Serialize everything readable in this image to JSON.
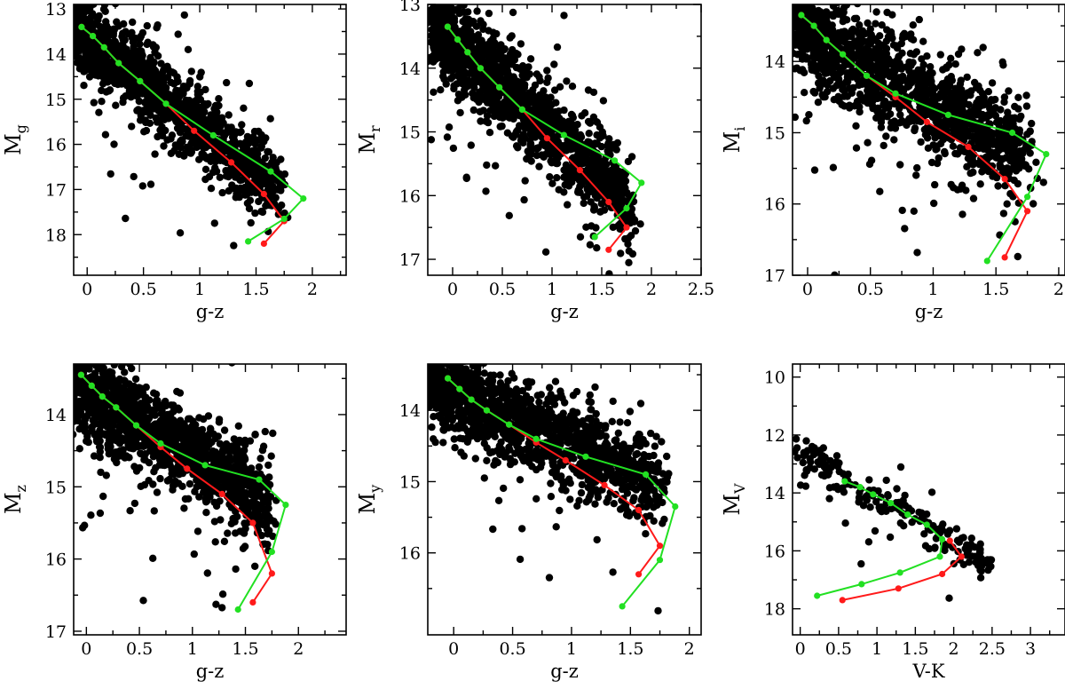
{
  "colors": {
    "scatter": "#000000",
    "red_track": "#ff1a1a",
    "green_track": "#22e022"
  },
  "chart_data": [
    {
      "type": "scatter",
      "panel": "Mg",
      "xlabel": "g-z",
      "ylabel": {
        "main": "M",
        "sub": "g"
      },
      "xlim": [
        -0.12,
        2.3
      ],
      "ylim": [
        18.9,
        12.9
      ],
      "xticks": [
        "0",
        "0.5",
        "1",
        "1.5",
        "2"
      ],
      "xtick_values": [
        0,
        0.5,
        1,
        1.5,
        2
      ],
      "yticks": [
        "13",
        "14",
        "15",
        "16",
        "17",
        "18"
      ],
      "ytick_values": [
        13,
        14,
        15,
        16,
        17,
        18
      ],
      "scatter": {
        "count": 1400,
        "x_range": [
          -0.12,
          1.7
        ],
        "y_at_x0": 13.6,
        "slope": 2.0,
        "spread": 0.42
      },
      "series": [
        {
          "name": "red",
          "x": [
            -0.05,
            0.05,
            0.15,
            0.28,
            0.47,
            0.7,
            0.95,
            1.28,
            1.57,
            1.75,
            1.57
          ],
          "y": [
            13.4,
            13.6,
            13.85,
            14.2,
            14.6,
            15.1,
            15.7,
            16.4,
            17.1,
            17.7,
            18.2
          ]
        },
        {
          "name": "green",
          "x": [
            -0.05,
            0.05,
            0.15,
            0.28,
            0.47,
            0.7,
            1.12,
            1.63,
            1.92,
            1.75,
            1.43
          ],
          "y": [
            13.4,
            13.6,
            13.85,
            14.2,
            14.6,
            15.1,
            15.8,
            16.6,
            17.2,
            17.65,
            18.15
          ]
        }
      ]
    },
    {
      "type": "scatter",
      "panel": "Mr",
      "xlabel": "g-z",
      "ylabel": {
        "main": "M",
        "sub": "r"
      },
      "xlim": [
        -0.25,
        2.5
      ],
      "ylim": [
        17.25,
        13.0
      ],
      "xticks": [
        "0",
        "0.5",
        "1",
        "1.5",
        "2",
        "2.5"
      ],
      "xtick_values": [
        0,
        0.5,
        1,
        1.5,
        2,
        2.5
      ],
      "yticks": [
        "13",
        "14",
        "15",
        "16",
        "17"
      ],
      "ytick_values": [
        13,
        14,
        15,
        16,
        17
      ],
      "scatter": {
        "count": 1500,
        "x_range": [
          -0.2,
          1.8
        ],
        "y_at_x0": 13.6,
        "slope": 1.4,
        "spread": 0.33
      },
      "series": [
        {
          "name": "red",
          "x": [
            -0.05,
            0.05,
            0.15,
            0.28,
            0.47,
            0.7,
            0.95,
            1.28,
            1.57,
            1.75,
            1.57
          ],
          "y": [
            13.35,
            13.55,
            13.75,
            14.0,
            14.3,
            14.65,
            15.1,
            15.6,
            16.1,
            16.5,
            16.85
          ]
        },
        {
          "name": "green",
          "x": [
            -0.05,
            0.05,
            0.15,
            0.28,
            0.47,
            0.7,
            1.12,
            1.63,
            1.9,
            1.75,
            1.43
          ],
          "y": [
            13.35,
            13.55,
            13.75,
            14.0,
            14.3,
            14.65,
            15.05,
            15.45,
            15.8,
            16.2,
            16.65
          ]
        }
      ]
    },
    {
      "type": "scatter",
      "panel": "Mi",
      "xlabel": "g-z",
      "ylabel": {
        "main": "M",
        "sub": "i"
      },
      "xlim": [
        -0.12,
        2.05
      ],
      "ylim": [
        17.0,
        13.2
      ],
      "xticks": [
        "0",
        "0.5",
        "1",
        "1.5",
        "2"
      ],
      "xtick_values": [
        0,
        0.5,
        1,
        1.5,
        2
      ],
      "yticks": [
        "14",
        "15",
        "16",
        "17"
      ],
      "ytick_values": [
        14,
        15,
        16,
        17
      ],
      "scatter": {
        "count": 1500,
        "x_range": [
          -0.12,
          1.75
        ],
        "y_at_x0": 13.6,
        "slope": 1.0,
        "spread": 0.33
      },
      "series": [
        {
          "name": "red",
          "x": [
            -0.05,
            0.05,
            0.15,
            0.28,
            0.47,
            0.7,
            0.95,
            1.28,
            1.57,
            1.75,
            1.57
          ],
          "y": [
            13.35,
            13.5,
            13.7,
            13.9,
            14.2,
            14.5,
            14.85,
            15.2,
            15.65,
            16.1,
            16.75
          ]
        },
        {
          "name": "green",
          "x": [
            -0.05,
            0.05,
            0.15,
            0.28,
            0.47,
            0.7,
            1.12,
            1.63,
            1.9,
            1.75,
            1.43
          ],
          "y": [
            13.35,
            13.5,
            13.7,
            13.9,
            14.2,
            14.45,
            14.75,
            15.0,
            15.3,
            15.9,
            16.8
          ]
        }
      ]
    },
    {
      "type": "scatter",
      "panel": "Mz",
      "xlabel": "g-z",
      "ylabel": {
        "main": "M",
        "sub": "z"
      },
      "xlim": [
        -0.12,
        2.45
      ],
      "ylim": [
        17.05,
        13.3
      ],
      "xticks": [
        "0",
        "0.5",
        "1",
        "1.5",
        "2"
      ],
      "xtick_values": [
        0,
        0.5,
        1,
        1.5,
        2
      ],
      "yticks": [
        "14",
        "15",
        "16",
        "17"
      ],
      "ytick_values": [
        14,
        15,
        16,
        17
      ],
      "scatter": {
        "count": 1500,
        "x_range": [
          -0.12,
          1.75
        ],
        "y_at_x0": 13.7,
        "slope": 0.85,
        "spread": 0.3
      },
      "series": [
        {
          "name": "red",
          "x": [
            -0.05,
            0.05,
            0.15,
            0.28,
            0.47,
            0.7,
            0.95,
            1.28,
            1.57,
            1.75,
            1.57
          ],
          "y": [
            13.45,
            13.6,
            13.75,
            13.9,
            14.15,
            14.45,
            14.75,
            15.1,
            15.5,
            16.2,
            16.6
          ]
        },
        {
          "name": "green",
          "x": [
            -0.05,
            0.05,
            0.15,
            0.28,
            0.47,
            0.7,
            1.12,
            1.63,
            1.88,
            1.75,
            1.43
          ],
          "y": [
            13.45,
            13.6,
            13.75,
            13.9,
            14.15,
            14.4,
            14.7,
            14.9,
            15.25,
            15.9,
            16.7
          ]
        }
      ]
    },
    {
      "type": "scatter",
      "panel": "My",
      "xlabel": "g-z",
      "ylabel": {
        "main": "M",
        "sub": "y"
      },
      "xlim": [
        -0.22,
        2.1
      ],
      "ylim": [
        17.15,
        13.35
      ],
      "xticks": [
        "0",
        "0.5",
        "1",
        "1.5",
        "2"
      ],
      "xtick_values": [
        0,
        0.5,
        1,
        1.5,
        2
      ],
      "yticks": [
        "14",
        "15",
        "16"
      ],
      "ytick_values": [
        14,
        15,
        16
      ],
      "scatter": {
        "count": 1500,
        "x_range": [
          -0.2,
          1.75
        ],
        "y_at_x0": 13.75,
        "slope": 0.75,
        "spread": 0.3
      },
      "series": [
        {
          "name": "red",
          "x": [
            -0.05,
            0.05,
            0.15,
            0.28,
            0.47,
            0.7,
            0.95,
            1.28,
            1.57,
            1.75,
            1.57
          ],
          "y": [
            13.55,
            13.7,
            13.85,
            14.0,
            14.2,
            14.45,
            14.7,
            15.05,
            15.4,
            15.9,
            16.3
          ]
        },
        {
          "name": "green",
          "x": [
            -0.05,
            0.05,
            0.15,
            0.28,
            0.47,
            0.7,
            1.12,
            1.63,
            1.88,
            1.75,
            1.43
          ],
          "y": [
            13.55,
            13.7,
            13.85,
            14.0,
            14.2,
            14.4,
            14.65,
            14.9,
            15.35,
            16.1,
            16.75
          ]
        }
      ]
    },
    {
      "type": "scatter",
      "panel": "MV",
      "xlabel": "V-K",
      "ylabel": {
        "main": "M",
        "sub": "V"
      },
      "xlim": [
        -0.1,
        3.45
      ],
      "ylim": [
        18.9,
        9.55
      ],
      "xticks": [
        "0",
        "0.5",
        "1",
        "1.5",
        "2",
        "2.5",
        "3"
      ],
      "xtick_values": [
        0,
        0.5,
        1,
        1.5,
        2,
        2.5,
        3
      ],
      "yticks": [
        "10",
        "12",
        "14",
        "16",
        "18"
      ],
      "ytick_values": [
        10,
        12,
        14,
        16,
        18
      ],
      "scatter": {
        "count": 200,
        "x_range": [
          0.0,
          2.5
        ],
        "y_at_x0": 12.6,
        "slope": 1.55,
        "spread": 0.35
      },
      "series": [
        {
          "name": "red",
          "x": [
            0.55,
            1.28,
            1.85,
            2.1,
            1.95
          ],
          "y": [
            17.7,
            17.3,
            16.8,
            16.2,
            15.65
          ]
        },
        {
          "name": "green",
          "x": [
            0.22,
            0.8,
            1.3,
            1.82,
            1.85,
            1.65,
            1.4,
            1.18,
            0.95,
            0.78,
            0.58
          ],
          "y": [
            17.55,
            17.15,
            16.75,
            16.2,
            15.6,
            15.1,
            14.75,
            14.35,
            14.05,
            13.8,
            13.6
          ]
        }
      ]
    }
  ]
}
